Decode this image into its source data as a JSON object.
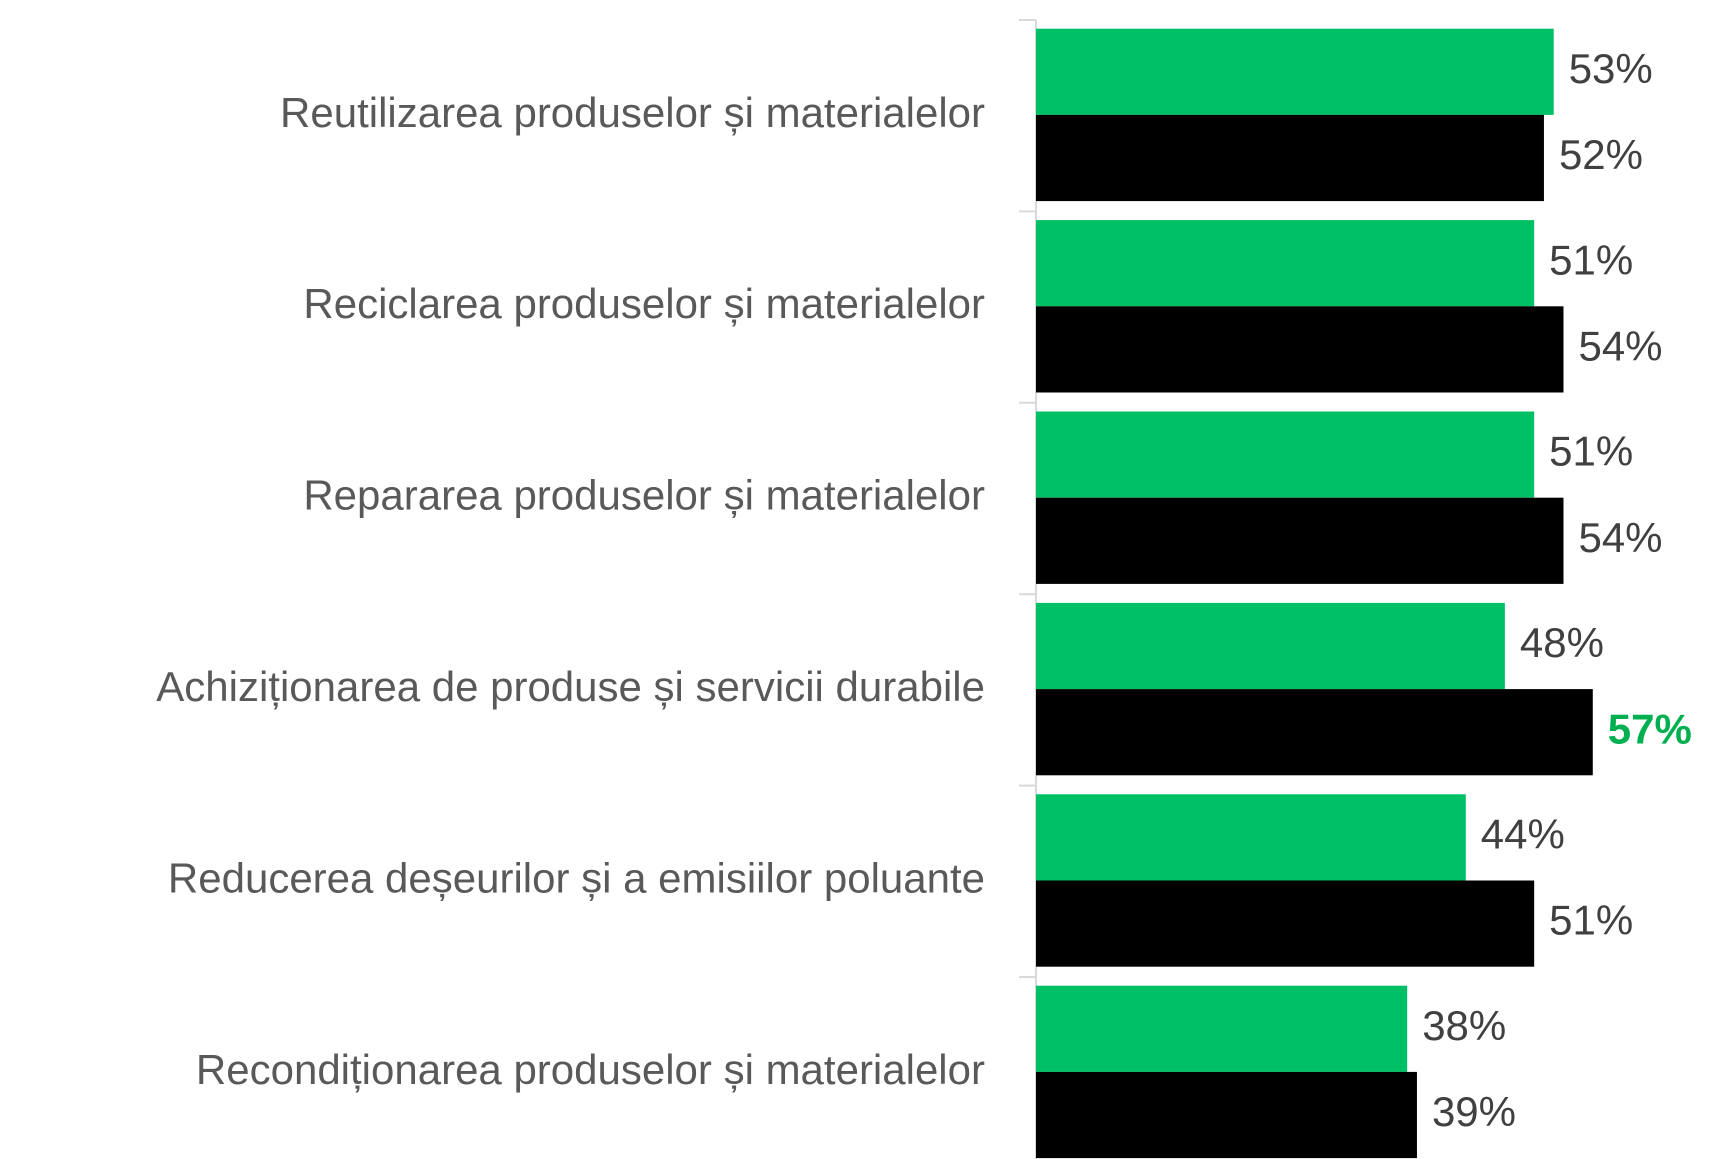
{
  "chart_data": {
    "type": "bar",
    "orientation": "horizontal",
    "categories": [
      "Reutilizarea produselor și materialelor",
      "Reciclarea produselor și materialelor",
      "Repararea produselor și materialelor",
      "Achiziționarea de produse și servicii durabile",
      "Reducerea deșeurilor și a emisiilor poluante",
      "Recondiționarea produselor și materialelor"
    ],
    "series": [
      {
        "color": "#00c065",
        "values": [
          53,
          51,
          51,
          48,
          44,
          38
        ],
        "value_labels": [
          "53%",
          "51%",
          "51%",
          "48%",
          "44%",
          "38%"
        ]
      },
      {
        "color": "#000000",
        "values": [
          52,
          54,
          54,
          57,
          51,
          39
        ],
        "value_labels": [
          "52%",
          "54%",
          "54%",
          "57%",
          "51%",
          "39%"
        ]
      }
    ],
    "highlight": {
      "series": 1,
      "index": 3,
      "color": "#00b050"
    },
    "xlim": [
      0,
      69
    ]
  }
}
